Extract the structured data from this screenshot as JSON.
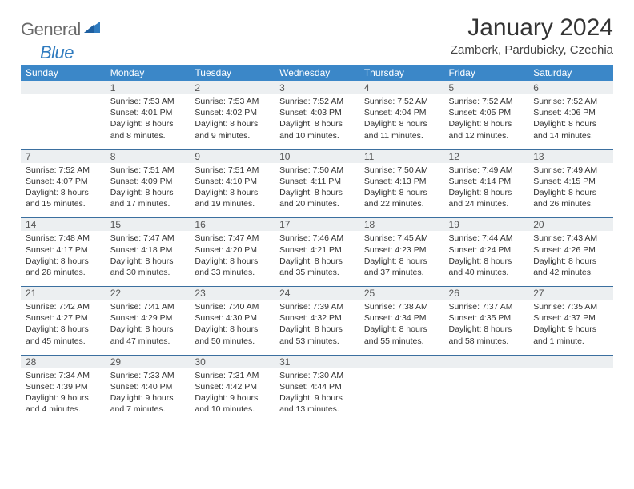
{
  "logo": {
    "gray": "General",
    "blue": "Blue"
  },
  "title": "January 2024",
  "location": "Zamberk, Pardubicky, Czechia",
  "colors": {
    "header_bg": "#3b87c8",
    "header_text": "#ffffff",
    "daynum_bg": "#eceff1",
    "daynum_border": "#3b6f9f",
    "logo_gray": "#6a6a6a",
    "logo_blue": "#2f7bbf"
  },
  "day_headers": [
    "Sunday",
    "Monday",
    "Tuesday",
    "Wednesday",
    "Thursday",
    "Friday",
    "Saturday"
  ],
  "weeks": [
    {
      "nums": [
        "",
        "1",
        "2",
        "3",
        "4",
        "5",
        "6"
      ],
      "cells": [
        null,
        {
          "sunrise": "Sunrise: 7:53 AM",
          "sunset": "Sunset: 4:01 PM",
          "d1": "Daylight: 8 hours",
          "d2": "and 8 minutes."
        },
        {
          "sunrise": "Sunrise: 7:53 AM",
          "sunset": "Sunset: 4:02 PM",
          "d1": "Daylight: 8 hours",
          "d2": "and 9 minutes."
        },
        {
          "sunrise": "Sunrise: 7:52 AM",
          "sunset": "Sunset: 4:03 PM",
          "d1": "Daylight: 8 hours",
          "d2": "and 10 minutes."
        },
        {
          "sunrise": "Sunrise: 7:52 AM",
          "sunset": "Sunset: 4:04 PM",
          "d1": "Daylight: 8 hours",
          "d2": "and 11 minutes."
        },
        {
          "sunrise": "Sunrise: 7:52 AM",
          "sunset": "Sunset: 4:05 PM",
          "d1": "Daylight: 8 hours",
          "d2": "and 12 minutes."
        },
        {
          "sunrise": "Sunrise: 7:52 AM",
          "sunset": "Sunset: 4:06 PM",
          "d1": "Daylight: 8 hours",
          "d2": "and 14 minutes."
        }
      ]
    },
    {
      "nums": [
        "7",
        "8",
        "9",
        "10",
        "11",
        "12",
        "13"
      ],
      "cells": [
        {
          "sunrise": "Sunrise: 7:52 AM",
          "sunset": "Sunset: 4:07 PM",
          "d1": "Daylight: 8 hours",
          "d2": "and 15 minutes."
        },
        {
          "sunrise": "Sunrise: 7:51 AM",
          "sunset": "Sunset: 4:09 PM",
          "d1": "Daylight: 8 hours",
          "d2": "and 17 minutes."
        },
        {
          "sunrise": "Sunrise: 7:51 AM",
          "sunset": "Sunset: 4:10 PM",
          "d1": "Daylight: 8 hours",
          "d2": "and 19 minutes."
        },
        {
          "sunrise": "Sunrise: 7:50 AM",
          "sunset": "Sunset: 4:11 PM",
          "d1": "Daylight: 8 hours",
          "d2": "and 20 minutes."
        },
        {
          "sunrise": "Sunrise: 7:50 AM",
          "sunset": "Sunset: 4:13 PM",
          "d1": "Daylight: 8 hours",
          "d2": "and 22 minutes."
        },
        {
          "sunrise": "Sunrise: 7:49 AM",
          "sunset": "Sunset: 4:14 PM",
          "d1": "Daylight: 8 hours",
          "d2": "and 24 minutes."
        },
        {
          "sunrise": "Sunrise: 7:49 AM",
          "sunset": "Sunset: 4:15 PM",
          "d1": "Daylight: 8 hours",
          "d2": "and 26 minutes."
        }
      ]
    },
    {
      "nums": [
        "14",
        "15",
        "16",
        "17",
        "18",
        "19",
        "20"
      ],
      "cells": [
        {
          "sunrise": "Sunrise: 7:48 AM",
          "sunset": "Sunset: 4:17 PM",
          "d1": "Daylight: 8 hours",
          "d2": "and 28 minutes."
        },
        {
          "sunrise": "Sunrise: 7:47 AM",
          "sunset": "Sunset: 4:18 PM",
          "d1": "Daylight: 8 hours",
          "d2": "and 30 minutes."
        },
        {
          "sunrise": "Sunrise: 7:47 AM",
          "sunset": "Sunset: 4:20 PM",
          "d1": "Daylight: 8 hours",
          "d2": "and 33 minutes."
        },
        {
          "sunrise": "Sunrise: 7:46 AM",
          "sunset": "Sunset: 4:21 PM",
          "d1": "Daylight: 8 hours",
          "d2": "and 35 minutes."
        },
        {
          "sunrise": "Sunrise: 7:45 AM",
          "sunset": "Sunset: 4:23 PM",
          "d1": "Daylight: 8 hours",
          "d2": "and 37 minutes."
        },
        {
          "sunrise": "Sunrise: 7:44 AM",
          "sunset": "Sunset: 4:24 PM",
          "d1": "Daylight: 8 hours",
          "d2": "and 40 minutes."
        },
        {
          "sunrise": "Sunrise: 7:43 AM",
          "sunset": "Sunset: 4:26 PM",
          "d1": "Daylight: 8 hours",
          "d2": "and 42 minutes."
        }
      ]
    },
    {
      "nums": [
        "21",
        "22",
        "23",
        "24",
        "25",
        "26",
        "27"
      ],
      "cells": [
        {
          "sunrise": "Sunrise: 7:42 AM",
          "sunset": "Sunset: 4:27 PM",
          "d1": "Daylight: 8 hours",
          "d2": "and 45 minutes."
        },
        {
          "sunrise": "Sunrise: 7:41 AM",
          "sunset": "Sunset: 4:29 PM",
          "d1": "Daylight: 8 hours",
          "d2": "and 47 minutes."
        },
        {
          "sunrise": "Sunrise: 7:40 AM",
          "sunset": "Sunset: 4:30 PM",
          "d1": "Daylight: 8 hours",
          "d2": "and 50 minutes."
        },
        {
          "sunrise": "Sunrise: 7:39 AM",
          "sunset": "Sunset: 4:32 PM",
          "d1": "Daylight: 8 hours",
          "d2": "and 53 minutes."
        },
        {
          "sunrise": "Sunrise: 7:38 AM",
          "sunset": "Sunset: 4:34 PM",
          "d1": "Daylight: 8 hours",
          "d2": "and 55 minutes."
        },
        {
          "sunrise": "Sunrise: 7:37 AM",
          "sunset": "Sunset: 4:35 PM",
          "d1": "Daylight: 8 hours",
          "d2": "and 58 minutes."
        },
        {
          "sunrise": "Sunrise: 7:35 AM",
          "sunset": "Sunset: 4:37 PM",
          "d1": "Daylight: 9 hours",
          "d2": "and 1 minute."
        }
      ]
    },
    {
      "nums": [
        "28",
        "29",
        "30",
        "31",
        "",
        "",
        ""
      ],
      "cells": [
        {
          "sunrise": "Sunrise: 7:34 AM",
          "sunset": "Sunset: 4:39 PM",
          "d1": "Daylight: 9 hours",
          "d2": "and 4 minutes."
        },
        {
          "sunrise": "Sunrise: 7:33 AM",
          "sunset": "Sunset: 4:40 PM",
          "d1": "Daylight: 9 hours",
          "d2": "and 7 minutes."
        },
        {
          "sunrise": "Sunrise: 7:31 AM",
          "sunset": "Sunset: 4:42 PM",
          "d1": "Daylight: 9 hours",
          "d2": "and 10 minutes."
        },
        {
          "sunrise": "Sunrise: 7:30 AM",
          "sunset": "Sunset: 4:44 PM",
          "d1": "Daylight: 9 hours",
          "d2": "and 13 minutes."
        },
        null,
        null,
        null
      ]
    }
  ]
}
